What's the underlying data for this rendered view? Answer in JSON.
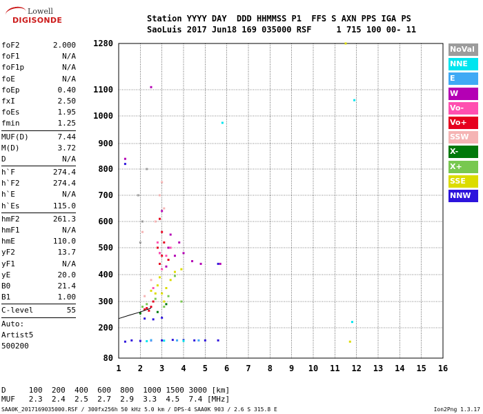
{
  "logo": {
    "line1": "Lowell",
    "line2": "DIGISONDE"
  },
  "header": {
    "line1": "Station YYYY DAY  DDD HHMMSS P1  FFS S AXN PPS IGA PS",
    "line2": "SaoLuis 2017 Jun18 169 035000 RSF     1 715 100 00- 11"
  },
  "params": [
    {
      "label": "foF2",
      "value": "2.000"
    },
    {
      "label": "foF1",
      "value": "N/A"
    },
    {
      "label": "foF1p",
      "value": "N/A"
    },
    {
      "label": "foE",
      "value": "N/A"
    },
    {
      "label": "foEp",
      "value": "0.40"
    },
    {
      "label": "fxI",
      "value": "2.50"
    },
    {
      "label": "foEs",
      "value": "1.95"
    },
    {
      "label": "fmin",
      "value": "1.25"
    },
    {
      "sep": true
    },
    {
      "label": "MUF(D)",
      "value": "7.44"
    },
    {
      "label": "M(D)",
      "value": "3.72"
    },
    {
      "label": "D",
      "value": "N/A"
    },
    {
      "sep": true
    },
    {
      "label": "h`F",
      "value": "274.4"
    },
    {
      "label": "h`F2",
      "value": "274.4"
    },
    {
      "label": "h`E",
      "value": "N/A"
    },
    {
      "label": "h`Es",
      "value": "115.0"
    },
    {
      "sep": true
    },
    {
      "label": "hmF2",
      "value": "261.3"
    },
    {
      "label": "hmF1",
      "value": "N/A"
    },
    {
      "label": "hmE",
      "value": "110.0"
    },
    {
      "label": "yF2",
      "value": "13.7"
    },
    {
      "label": "yF1",
      "value": "N/A"
    },
    {
      "label": "yE",
      "value": "20.0"
    },
    {
      "label": "B0",
      "value": "21.4"
    },
    {
      "label": "B1",
      "value": "1.00"
    },
    {
      "sep": true
    },
    {
      "label": "C-level",
      "value": "55"
    },
    {
      "sep": true
    },
    {
      "label": "Auto:",
      "value": ""
    },
    {
      "label": "Artist5",
      "value": ""
    },
    {
      "label": "500200",
      "value": ""
    }
  ],
  "legend": [
    {
      "label": "NoVal",
      "color": "#9c9c9c"
    },
    {
      "label": "NNE",
      "color": "#00e5ef"
    },
    {
      "label": "E",
      "color": "#3fa9f5"
    },
    {
      "label": "W",
      "color": "#b400b4"
    },
    {
      "label": "Vo-",
      "color": "#ff4fb0"
    },
    {
      "label": "Vo+",
      "color": "#e6001e"
    },
    {
      "label": "SSW",
      "color": "#f5b4b4"
    },
    {
      "label": "X-",
      "color": "#00780a"
    },
    {
      "label": "X+",
      "color": "#78c850"
    },
    {
      "label": "SSE",
      "color": "#dcdc00"
    },
    {
      "label": "NNW",
      "color": "#2d14dc"
    }
  ],
  "bottom": {
    "line1": "D     100  200  400  600  800  1000 1500 3000 [km]",
    "line2": "MUF   2.3  2.4  2.5  2.7  2.9  3.3  4.5  7.4 [MHz]"
  },
  "footer": "SAA0K_2017169035000.RSF / 300fx256h 50 kHz 5.0 km / DPS-4 SAA0K 903 / 2.6 S 315.8 E",
  "version": "Ion2Png 1.3.17",
  "chart_data": {
    "type": "scatter",
    "title": "",
    "xlabel": "",
    "ylabel": "",
    "xlim": [
      1,
      16
    ],
    "ylim": [
      80,
      1280
    ],
    "xticks": [
      1,
      2,
      3,
      4,
      5,
      6,
      7,
      8,
      9,
      10,
      11,
      12,
      13,
      14,
      15,
      16
    ],
    "yticks": [
      80,
      200,
      300,
      400,
      500,
      600,
      700,
      800,
      900,
      1000,
      1100,
      1280
    ],
    "y_scale": "ionogram (nonlinear, denser at low heights)",
    "grid": true,
    "series": [
      {
        "color_key": "Vo+",
        "points": [
          [
            2.3,
            275
          ],
          [
            2.5,
            280
          ],
          [
            2.8,
            500
          ],
          [
            3.0,
            470
          ],
          [
            3.1,
            520
          ],
          [
            2.9,
            440
          ],
          [
            3.3,
            455
          ],
          [
            2.6,
            300
          ],
          [
            2.2,
            270
          ],
          [
            2.4,
            265
          ],
          [
            3.0,
            560
          ],
          [
            2.9,
            610
          ]
        ]
      },
      {
        "color_key": "W",
        "points": [
          [
            2.5,
            1110
          ],
          [
            3.3,
            500
          ],
          [
            3.6,
            470
          ],
          [
            4.0,
            480
          ],
          [
            3.8,
            520
          ],
          [
            4.4,
            450
          ],
          [
            4.8,
            440
          ],
          [
            3.2,
            430
          ],
          [
            3.4,
            550
          ],
          [
            2.9,
            480
          ],
          [
            3.0,
            640
          ],
          [
            5.7,
            440
          ],
          [
            1.3,
            840
          ]
        ]
      },
      {
        "color_key": "SSE",
        "points": [
          [
            2.7,
            330
          ],
          [
            3.0,
            330
          ],
          [
            3.2,
            350
          ],
          [
            3.4,
            380
          ],
          [
            2.8,
            360
          ],
          [
            3.1,
            300
          ],
          [
            3.6,
            410
          ],
          [
            3.9,
            420
          ],
          [
            2.5,
            340
          ],
          [
            2.9,
            390
          ],
          [
            11.5,
            1280
          ],
          [
            11.7,
            145
          ]
        ]
      },
      {
        "color_key": "Vo-",
        "points": [
          [
            2.9,
            480
          ],
          [
            3.2,
            470
          ],
          [
            3.0,
            420
          ],
          [
            2.6,
            350
          ],
          [
            2.8,
            520
          ],
          [
            3.4,
            500
          ]
        ]
      },
      {
        "color_key": "NNW",
        "points": [
          [
            1.3,
            145
          ],
          [
            1.6,
            150
          ],
          [
            2.0,
            148
          ],
          [
            2.5,
            150
          ],
          [
            3.0,
            150
          ],
          [
            3.5,
            152
          ],
          [
            4.0,
            151
          ],
          [
            4.5,
            150
          ],
          [
            5.0,
            150
          ],
          [
            5.6,
            150
          ],
          [
            2.2,
            235
          ],
          [
            2.6,
            232
          ],
          [
            3.0,
            238
          ],
          [
            5.6,
            440
          ],
          [
            1.3,
            820
          ]
        ]
      },
      {
        "color_key": "X+",
        "points": [
          [
            2.3,
            290
          ],
          [
            2.7,
            310
          ],
          [
            3.3,
            320
          ],
          [
            3.6,
            395
          ],
          [
            2.1,
            280
          ],
          [
            3.9,
            300
          ],
          [
            3.1,
            280
          ]
        ]
      },
      {
        "color_key": "X-",
        "points": [
          [
            2.8,
            260
          ],
          [
            3.2,
            290
          ],
          [
            2.0,
            255
          ]
        ]
      },
      {
        "color_key": "NNE",
        "points": [
          [
            2.3,
            147
          ],
          [
            3.1,
            149
          ],
          [
            4.0,
            148
          ],
          [
            5.8,
            975
          ],
          [
            11.9,
            1060
          ],
          [
            11.8,
            222
          ]
        ]
      },
      {
        "color_key": "E",
        "points": [
          [
            2.5,
            151
          ],
          [
            3.7,
            150
          ],
          [
            4.7,
            150
          ]
        ]
      },
      {
        "color_key": "SSW",
        "points": [
          [
            2.2,
            320
          ],
          [
            2.5,
            380
          ],
          [
            3.0,
            750
          ],
          [
            2.9,
            700
          ],
          [
            3.1,
            650
          ],
          [
            2.7,
            600
          ],
          [
            2.1,
            560
          ]
        ]
      },
      {
        "color_key": "NoVal",
        "points": [
          [
            2.0,
            520
          ],
          [
            2.1,
            600
          ],
          [
            2.3,
            800
          ],
          [
            1.9,
            700
          ]
        ]
      }
    ],
    "trace_line": {
      "color": "#000000",
      "points": [
        [
          1.0,
          235
        ],
        [
          1.5,
          248
        ],
        [
          2.0,
          260
        ],
        [
          2.5,
          275
        ]
      ]
    }
  }
}
